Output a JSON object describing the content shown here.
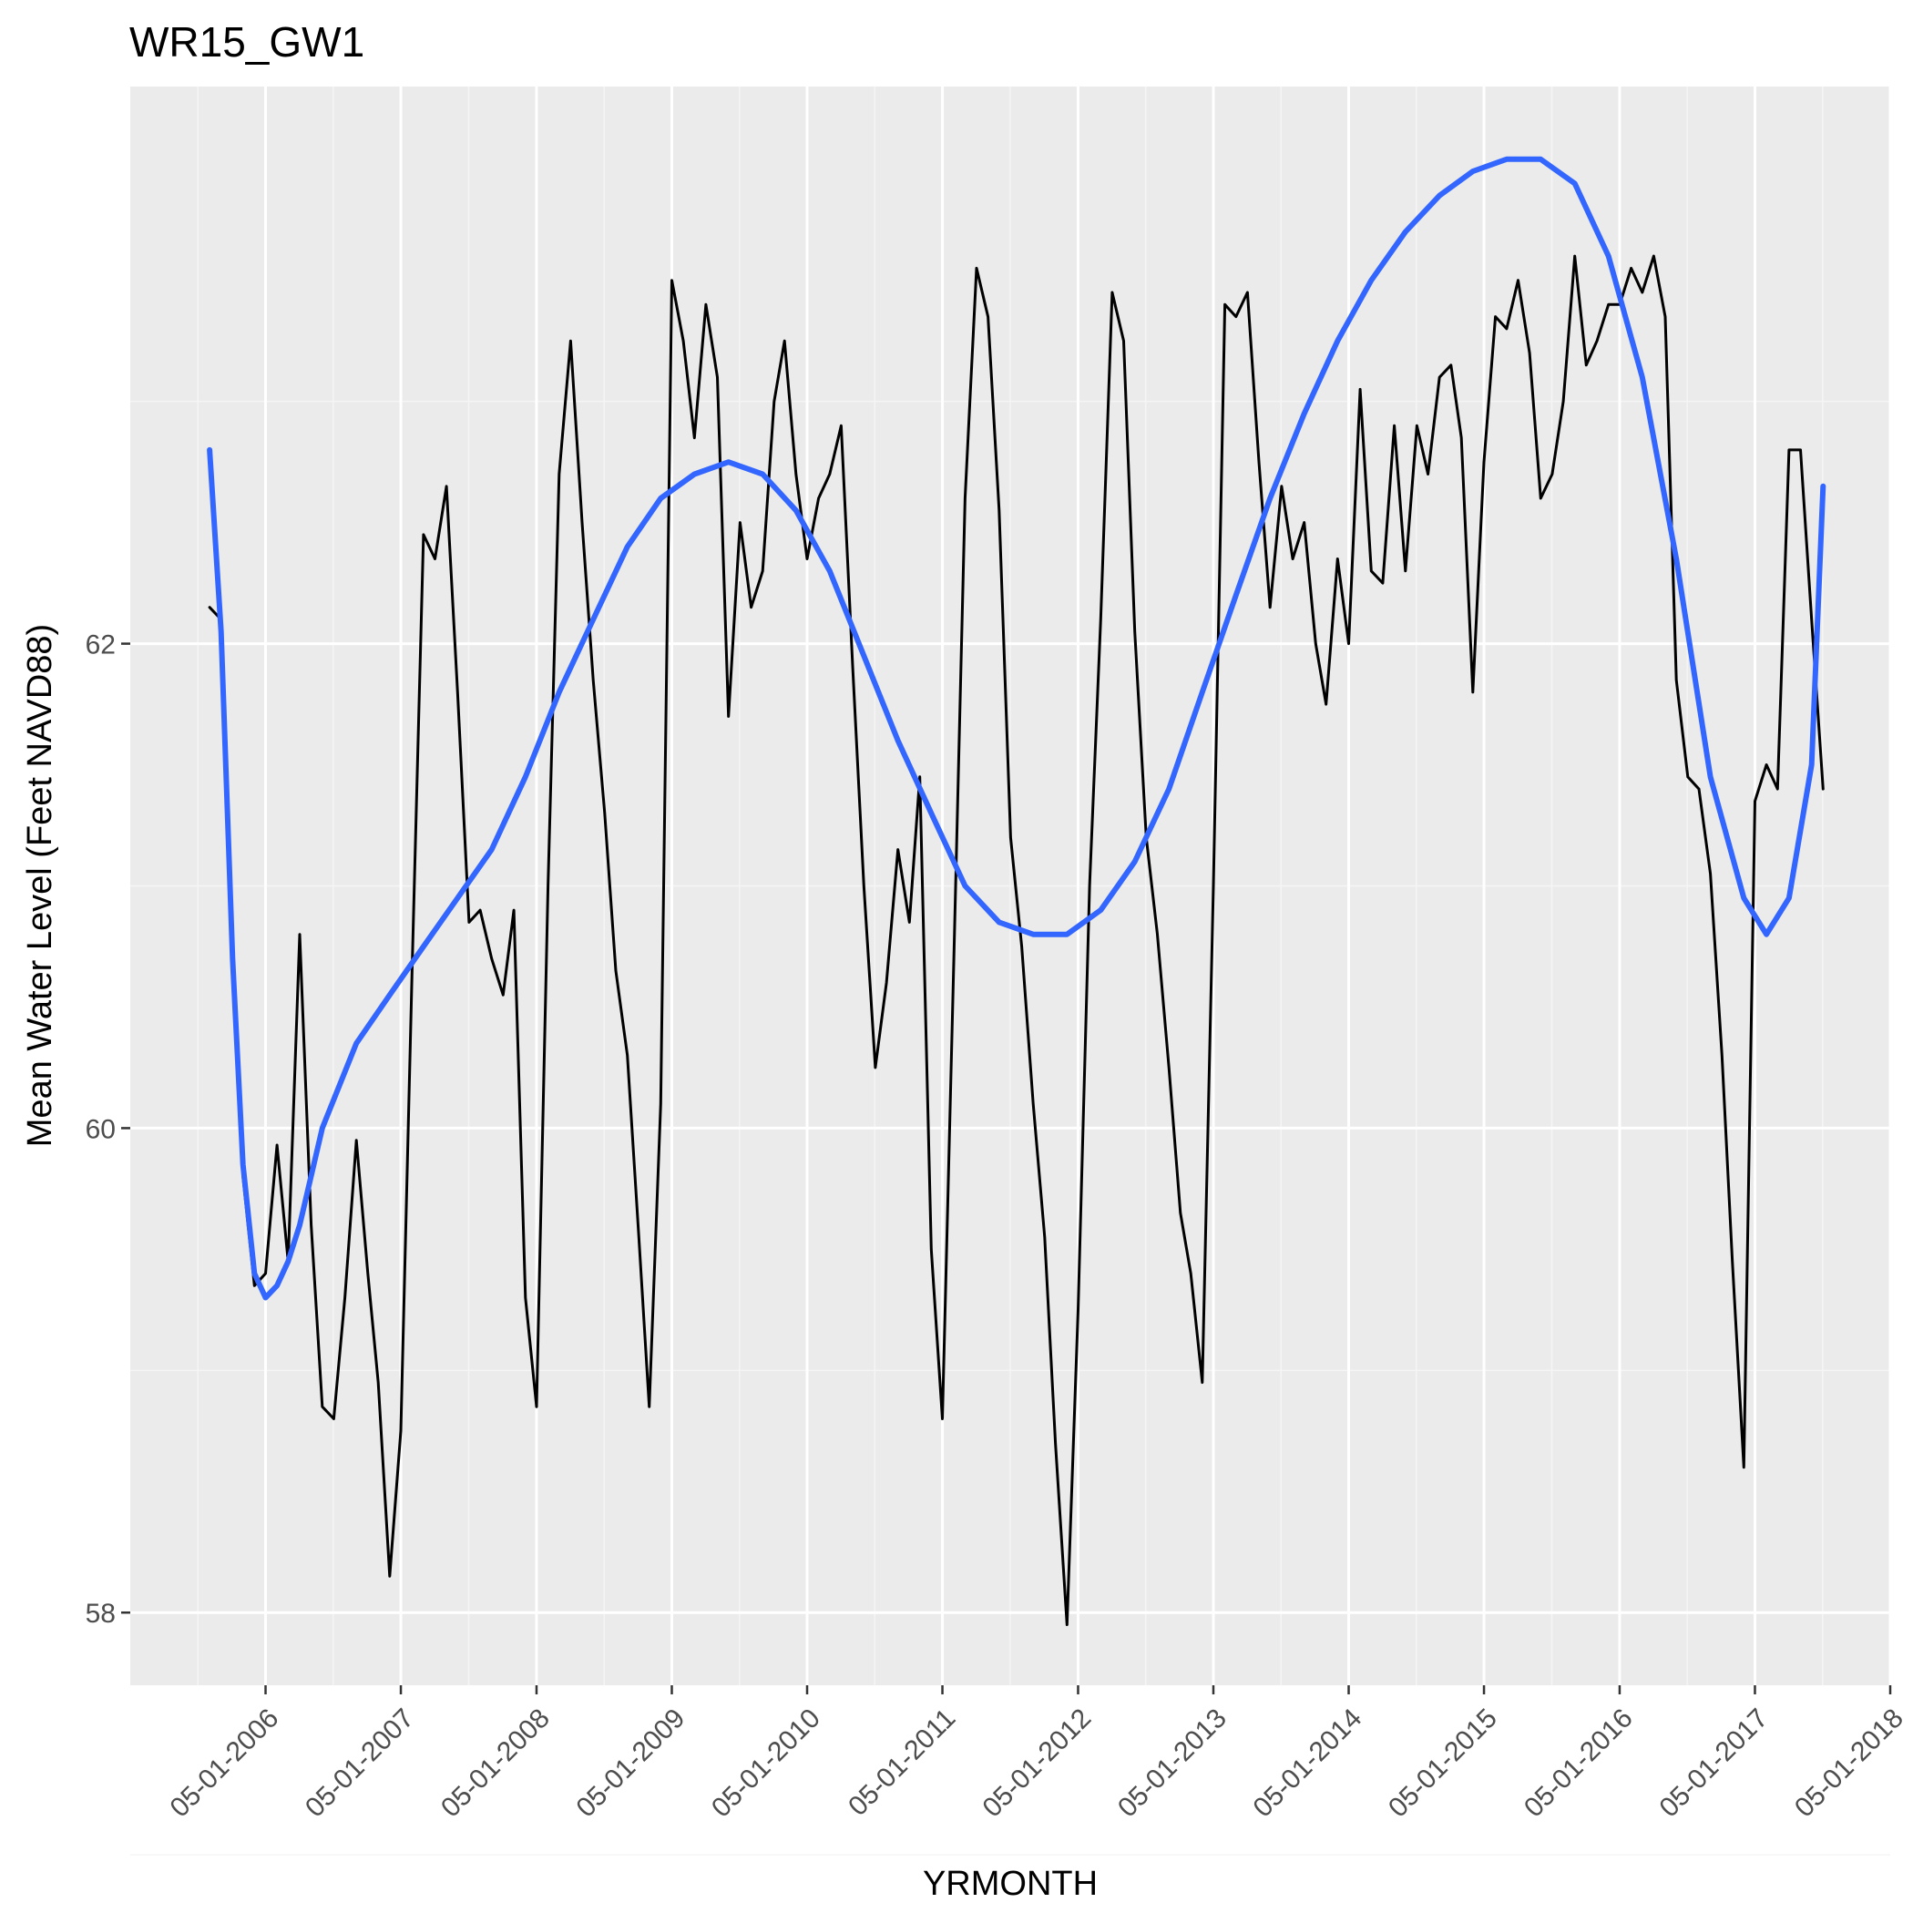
{
  "chart_data": {
    "type": "line",
    "title": "WR15_GW1",
    "xlabel": "YRMONTH",
    "ylabel": "Mean Water Level (Feet NAVD88)",
    "xlim": [
      "2005-05-01",
      "2018-05-01"
    ],
    "ylim": [
      57.7,
      64.3
    ],
    "x_ticks": [
      "05-01-2006",
      "05-01-2007",
      "05-01-2008",
      "05-01-2009",
      "05-01-2010",
      "05-01-2011",
      "05-01-2012",
      "05-01-2013",
      "05-01-2014",
      "05-01-2015",
      "05-01-2016",
      "05-01-2017",
      "05-01-2018"
    ],
    "y_ticks": [
      58,
      60,
      62
    ],
    "grid": true,
    "panel_background": "#EBEBEB",
    "series": [
      {
        "color": "#000000",
        "points": [
          [
            "2005-12-01",
            62.15
          ],
          [
            "2006-01-01",
            62.1
          ],
          [
            "2006-02-01",
            60.8
          ],
          [
            "2006-03-01",
            59.8
          ],
          [
            "2006-04-01",
            59.35
          ],
          [
            "2006-05-01",
            59.4
          ],
          [
            "2006-06-01",
            59.93
          ],
          [
            "2006-07-01",
            59.45
          ],
          [
            "2006-08-01",
            60.8
          ],
          [
            "2006-09-01",
            59.6
          ],
          [
            "2006-10-01",
            58.85
          ],
          [
            "2006-11-01",
            58.8
          ],
          [
            "2006-12-01",
            59.3
          ],
          [
            "2007-01-01",
            59.95
          ],
          [
            "2007-02-01",
            59.4
          ],
          [
            "2007-03-01",
            58.95
          ],
          [
            "2007-04-01",
            58.15
          ],
          [
            "2007-05-01",
            58.75
          ],
          [
            "2007-06-01",
            60.7
          ],
          [
            "2007-07-01",
            62.45
          ],
          [
            "2007-08-01",
            62.35
          ],
          [
            "2007-09-01",
            62.65
          ],
          [
            "2007-10-01",
            61.8
          ],
          [
            "2007-11-01",
            60.85
          ],
          [
            "2007-12-01",
            60.9
          ],
          [
            "2008-01-01",
            60.7
          ],
          [
            "2008-02-01",
            60.55
          ],
          [
            "2008-03-01",
            60.9
          ],
          [
            "2008-04-01",
            59.3
          ],
          [
            "2008-05-01",
            58.85
          ],
          [
            "2008-06-01",
            61.0
          ],
          [
            "2008-07-01",
            62.7
          ],
          [
            "2008-08-01",
            63.25
          ],
          [
            "2008-09-01",
            62.5
          ],
          [
            "2008-10-01",
            61.85
          ],
          [
            "2008-11-01",
            61.3
          ],
          [
            "2008-12-01",
            60.65
          ],
          [
            "2009-01-01",
            60.3
          ],
          [
            "2009-02-01",
            59.55
          ],
          [
            "2009-03-01",
            58.85
          ],
          [
            "2009-04-01",
            60.1
          ],
          [
            "2009-05-01",
            63.5
          ],
          [
            "2009-06-01",
            63.25
          ],
          [
            "2009-07-01",
            62.85
          ],
          [
            "2009-08-01",
            63.4
          ],
          [
            "2009-09-01",
            63.1
          ],
          [
            "2009-10-01",
            61.7
          ],
          [
            "2009-11-01",
            62.5
          ],
          [
            "2009-12-01",
            62.15
          ],
          [
            "2010-01-01",
            62.3
          ],
          [
            "2010-02-01",
            63.0
          ],
          [
            "2010-03-01",
            63.25
          ],
          [
            "2010-04-01",
            62.7
          ],
          [
            "2010-05-01",
            62.35
          ],
          [
            "2010-06-01",
            62.6
          ],
          [
            "2010-07-01",
            62.7
          ],
          [
            "2010-08-01",
            62.9
          ],
          [
            "2010-09-01",
            61.9
          ],
          [
            "2010-10-01",
            61.0
          ],
          [
            "2010-11-01",
            60.25
          ],
          [
            "2010-12-01",
            60.6
          ],
          [
            "2011-01-01",
            61.15
          ],
          [
            "2011-02-01",
            60.85
          ],
          [
            "2011-03-01",
            61.45
          ],
          [
            "2011-04-01",
            59.5
          ],
          [
            "2011-05-01",
            58.8
          ],
          [
            "2011-06-01",
            60.7
          ],
          [
            "2011-07-01",
            62.6
          ],
          [
            "2011-08-01",
            63.55
          ],
          [
            "2011-09-01",
            63.35
          ],
          [
            "2011-10-01",
            62.55
          ],
          [
            "2011-11-01",
            61.2
          ],
          [
            "2011-12-01",
            60.75
          ],
          [
            "2012-01-01",
            60.1
          ],
          [
            "2012-02-01",
            59.55
          ],
          [
            "2012-03-01",
            58.7
          ],
          [
            "2012-04-01",
            57.95
          ],
          [
            "2012-05-01",
            59.25
          ],
          [
            "2012-06-01",
            61.0
          ],
          [
            "2012-07-01",
            62.1
          ],
          [
            "2012-08-01",
            63.45
          ],
          [
            "2012-09-01",
            63.25
          ],
          [
            "2012-10-01",
            62.05
          ],
          [
            "2012-11-01",
            61.2
          ],
          [
            "2012-12-01",
            60.8
          ],
          [
            "2013-01-01",
            60.25
          ],
          [
            "2013-02-01",
            59.65
          ],
          [
            "2013-03-01",
            59.4
          ],
          [
            "2013-04-01",
            58.95
          ],
          [
            "2013-05-01",
            61.0
          ],
          [
            "2013-06-01",
            63.4
          ],
          [
            "2013-07-01",
            63.35
          ],
          [
            "2013-08-01",
            63.45
          ],
          [
            "2013-09-01",
            62.75
          ],
          [
            "2013-10-01",
            62.15
          ],
          [
            "2013-11-01",
            62.65
          ],
          [
            "2013-12-01",
            62.35
          ],
          [
            "2014-01-01",
            62.5
          ],
          [
            "2014-02-01",
            62.0
          ],
          [
            "2014-03-01",
            61.75
          ],
          [
            "2014-04-01",
            62.35
          ],
          [
            "2014-05-01",
            62.0
          ],
          [
            "2014-06-01",
            63.05
          ],
          [
            "2014-07-01",
            62.3
          ],
          [
            "2014-08-01",
            62.25
          ],
          [
            "2014-09-01",
            62.9
          ],
          [
            "2014-10-01",
            62.3
          ],
          [
            "2014-11-01",
            62.9
          ],
          [
            "2014-12-01",
            62.7
          ],
          [
            "2015-01-01",
            63.1
          ],
          [
            "2015-02-01",
            63.15
          ],
          [
            "2015-03-01",
            62.85
          ],
          [
            "2015-04-01",
            61.8
          ],
          [
            "2015-05-01",
            62.75
          ],
          [
            "2015-06-01",
            63.35
          ],
          [
            "2015-07-01",
            63.3
          ],
          [
            "2015-08-01",
            63.5
          ],
          [
            "2015-09-01",
            63.2
          ],
          [
            "2015-10-01",
            62.6
          ],
          [
            "2015-11-01",
            62.7
          ],
          [
            "2015-12-01",
            63.0
          ],
          [
            "2016-01-01",
            63.6
          ],
          [
            "2016-02-01",
            63.15
          ],
          [
            "2016-03-01",
            63.25
          ],
          [
            "2016-04-01",
            63.4
          ],
          [
            "2016-05-01",
            63.4
          ],
          [
            "2016-06-01",
            63.55
          ],
          [
            "2016-07-01",
            63.45
          ],
          [
            "2016-08-01",
            63.6
          ],
          [
            "2016-09-01",
            63.35
          ],
          [
            "2016-10-01",
            61.85
          ],
          [
            "2016-11-01",
            61.45
          ],
          [
            "2016-12-01",
            61.4
          ],
          [
            "2017-01-01",
            61.05
          ],
          [
            "2017-02-01",
            60.3
          ],
          [
            "2017-03-01",
            59.45
          ],
          [
            "2017-04-01",
            58.6
          ],
          [
            "2017-05-01",
            61.35
          ],
          [
            "2017-06-01",
            61.5
          ],
          [
            "2017-07-01",
            61.4
          ],
          [
            "2017-08-01",
            62.8
          ],
          [
            "2017-09-01",
            62.8
          ],
          [
            "2017-10-01",
            62.1
          ],
          [
            "2017-11-01",
            61.4
          ]
        ]
      },
      {
        "color": "#3366FF",
        "points": [
          [
            "2005-12-01",
            62.8
          ],
          [
            "2006-01-01",
            62.05
          ],
          [
            "2006-02-01",
            60.7
          ],
          [
            "2006-03-01",
            59.85
          ],
          [
            "2006-04-01",
            59.4
          ],
          [
            "2006-05-01",
            59.3
          ],
          [
            "2006-06-01",
            59.35
          ],
          [
            "2006-07-01",
            59.45
          ],
          [
            "2006-08-01",
            59.6
          ],
          [
            "2006-10-01",
            60.0
          ],
          [
            "2007-01-01",
            60.35
          ],
          [
            "2007-04-01",
            60.55
          ],
          [
            "2007-07-01",
            60.75
          ],
          [
            "2007-10-01",
            60.95
          ],
          [
            "2008-01-01",
            61.15
          ],
          [
            "2008-04-01",
            61.45
          ],
          [
            "2008-07-01",
            61.8
          ],
          [
            "2008-10-01",
            62.1
          ],
          [
            "2009-01-01",
            62.4
          ],
          [
            "2009-04-01",
            62.6
          ],
          [
            "2009-07-01",
            62.7
          ],
          [
            "2009-10-01",
            62.75
          ],
          [
            "2010-01-01",
            62.7
          ],
          [
            "2010-04-01",
            62.55
          ],
          [
            "2010-07-01",
            62.3
          ],
          [
            "2010-10-01",
            61.95
          ],
          [
            "2011-01-01",
            61.6
          ],
          [
            "2011-04-01",
            61.3
          ],
          [
            "2011-07-01",
            61.0
          ],
          [
            "2011-10-01",
            60.85
          ],
          [
            "2012-01-01",
            60.8
          ],
          [
            "2012-04-01",
            60.8
          ],
          [
            "2012-07-01",
            60.9
          ],
          [
            "2012-10-01",
            61.1
          ],
          [
            "2013-01-01",
            61.4
          ],
          [
            "2013-04-01",
            61.8
          ],
          [
            "2013-07-01",
            62.2
          ],
          [
            "2013-10-01",
            62.6
          ],
          [
            "2014-01-01",
            62.95
          ],
          [
            "2014-04-01",
            63.25
          ],
          [
            "2014-07-01",
            63.5
          ],
          [
            "2014-10-01",
            63.7
          ],
          [
            "2015-01-01",
            63.85
          ],
          [
            "2015-04-01",
            63.95
          ],
          [
            "2015-07-01",
            64.0
          ],
          [
            "2015-10-01",
            64.0
          ],
          [
            "2016-01-01",
            63.9
          ],
          [
            "2016-04-01",
            63.6
          ],
          [
            "2016-07-01",
            63.1
          ],
          [
            "2016-10-01",
            62.35
          ],
          [
            "2017-01-01",
            61.45
          ],
          [
            "2017-04-01",
            60.95
          ],
          [
            "2017-06-01",
            60.8
          ],
          [
            "2017-08-01",
            60.95
          ],
          [
            "2017-10-01",
            61.5
          ],
          [
            "2017-11-01",
            62.65
          ]
        ]
      }
    ]
  }
}
